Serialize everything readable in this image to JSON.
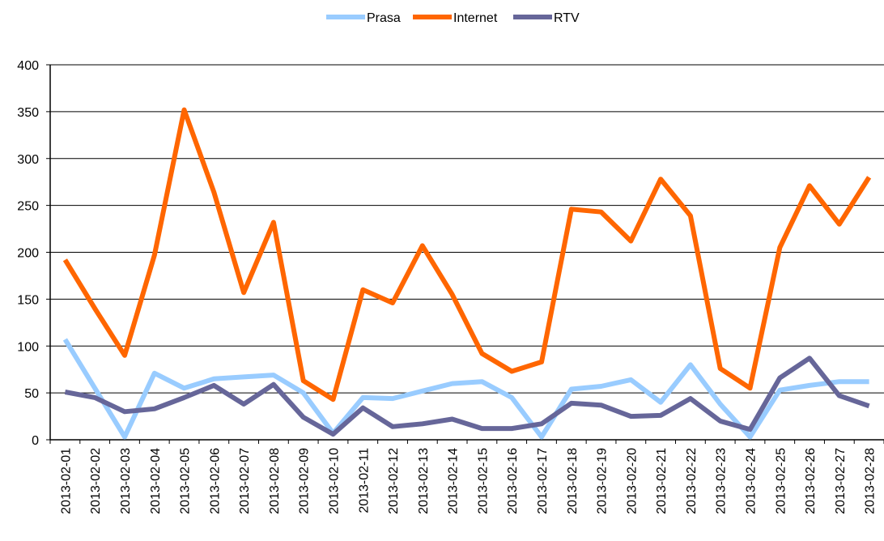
{
  "chart_data": {
    "type": "line",
    "categories": [
      "2013-02-01",
      "2013-02-02",
      "2013-02-03",
      "2013-02-04",
      "2013-02-05",
      "2013-02-06",
      "2013-02-07",
      "2013-02-08",
      "2013-02-09",
      "2013-02-10",
      "2013-02-11",
      "2013-02-12",
      "2013-02-13",
      "2013-02-14",
      "2013-02-15",
      "2013-02-16",
      "2013-02-17",
      "2013-02-18",
      "2013-02-19",
      "2013-02-20",
      "2013-02-21",
      "2013-02-22",
      "2013-02-23",
      "2013-02-24",
      "2013-02-25",
      "2013-02-26",
      "2013-02-27",
      "2013-02-28"
    ],
    "series": [
      {
        "name": "Prasa",
        "color": "#99ccff",
        "values": [
          107,
          55,
          3,
          71,
          55,
          65,
          67,
          69,
          50,
          7,
          45,
          44,
          52,
          60,
          62,
          45,
          3,
          54,
          57,
          64,
          40,
          80,
          38,
          3,
          53,
          58,
          62,
          62
        ]
      },
      {
        "name": "Internet",
        "color": "#ff6600",
        "values": [
          192,
          140,
          90,
          197,
          352,
          264,
          157,
          232,
          63,
          43,
          160,
          146,
          207,
          155,
          92,
          73,
          83,
          246,
          243,
          212,
          278,
          239,
          76,
          55,
          205,
          271,
          230,
          280
        ]
      },
      {
        "name": "RTV",
        "color": "#666699",
        "values": [
          51,
          45,
          30,
          33,
          45,
          58,
          38,
          59,
          24,
          6,
          34,
          14,
          17,
          22,
          12,
          12,
          17,
          39,
          37,
          25,
          26,
          44,
          20,
          11,
          66,
          87,
          47,
          36
        ]
      }
    ],
    "ylim": [
      0,
      400
    ],
    "yticks": [
      0,
      50,
      100,
      150,
      200,
      250,
      300,
      350,
      400
    ],
    "grid": true,
    "legend": "top"
  }
}
